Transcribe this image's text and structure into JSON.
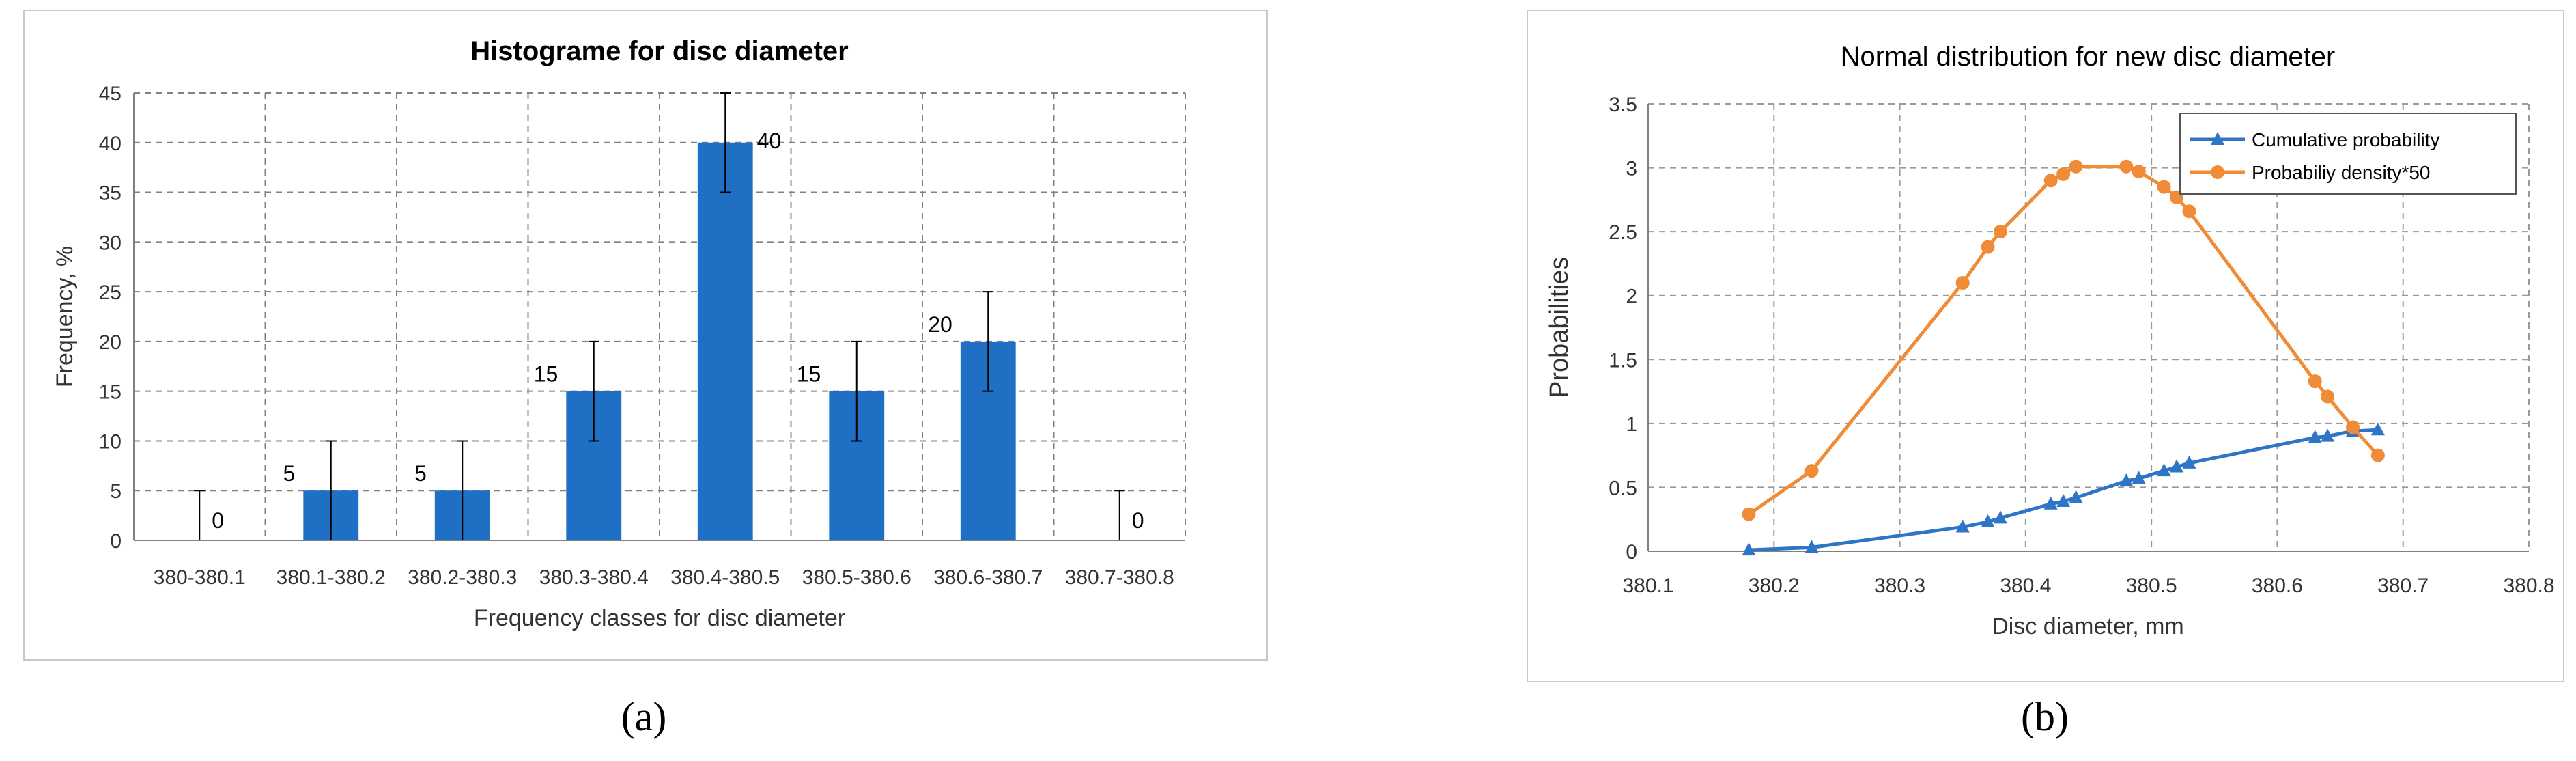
{
  "captions": {
    "a": "(a)",
    "b": "(b)"
  },
  "chart_data": [
    {
      "type": "bar",
      "title": "Histograme for disc diameter",
      "xlabel": "Frequency classes for disc diameter",
      "ylabel": "Frequency, %",
      "ylim": [
        0,
        45
      ],
      "yticks": [
        0,
        5,
        10,
        15,
        20,
        25,
        30,
        35,
        40,
        45
      ],
      "grid": true,
      "bar_color": "#1f6fc5",
      "categories": [
        "380-380.1",
        "380.1-380.2",
        "380.2-380.3",
        "380.3-380.4",
        "380.4-380.5",
        "380.5-380.6",
        "380.6-380.7",
        "380.7-380.8"
      ],
      "values": [
        0,
        5,
        5,
        15,
        40,
        15,
        20,
        0
      ],
      "data_labels": [
        "0",
        "5",
        "5",
        "15",
        "40",
        "15",
        "20",
        "0"
      ],
      "error_bars": [
        5,
        5,
        5,
        5,
        5,
        5,
        5,
        5
      ]
    },
    {
      "type": "line",
      "title": "Normal distribution for new disc diameter",
      "xlabel": "Disc diameter, mm",
      "ylabel": "Probabilities",
      "xlim": [
        380.1,
        380.8
      ],
      "ylim": [
        0,
        3.5
      ],
      "xticks": [
        "380.1",
        "380.2",
        "380.3",
        "380.4",
        "380.5",
        "380.6",
        "380.7",
        "380.8"
      ],
      "yticks": [
        "0",
        "0.5",
        "1",
        "1.5",
        "2",
        "2.5",
        "3",
        "3.5"
      ],
      "grid": true,
      "legend_position": "top-right",
      "series": [
        {
          "name": "Cumulative probability",
          "color": "#2e75c6",
          "marker": "triangle",
          "x": [
            380.18,
            380.23,
            380.35,
            380.37,
            380.38,
            380.42,
            380.43,
            380.44,
            380.48,
            380.49,
            380.51,
            380.52,
            380.53,
            380.63,
            380.64,
            380.66,
            380.68
          ],
          "y": [
            0.01,
            0.03,
            0.19,
            0.23,
            0.26,
            0.37,
            0.39,
            0.42,
            0.55,
            0.57,
            0.63,
            0.66,
            0.69,
            0.89,
            0.9,
            0.94,
            0.95
          ]
        },
        {
          "name": "Probabiliy density*50",
          "color": "#f08c38",
          "marker": "circle",
          "x": [
            380.18,
            380.23,
            380.35,
            380.37,
            380.38,
            380.42,
            380.43,
            380.44,
            380.48,
            380.49,
            380.51,
            380.52,
            380.53,
            380.63,
            380.64,
            380.66,
            380.68
          ],
          "y": [
            0.29,
            0.63,
            2.1,
            2.38,
            2.5,
            2.9,
            2.95,
            3.01,
            3.01,
            2.97,
            2.85,
            2.77,
            2.66,
            1.33,
            1.21,
            0.97,
            0.75
          ]
        }
      ]
    }
  ]
}
